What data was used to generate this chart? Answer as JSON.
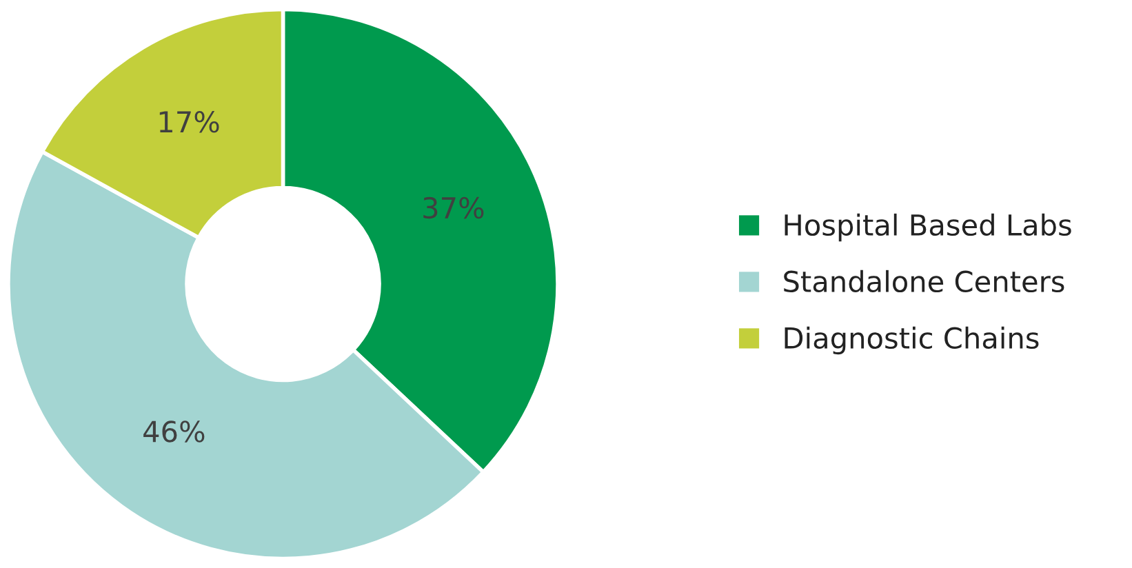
{
  "chart_data": {
    "type": "donut",
    "categories": [
      "Hospital Based Labs",
      "Standalone Centers",
      "Diagnostic Chains"
    ],
    "values": [
      37,
      46,
      17
    ],
    "colors": [
      "#009a4e",
      "#a3d5d2",
      "#c3cf3b"
    ],
    "value_labels": [
      "37%",
      "46%",
      "17%"
    ],
    "legend": "right"
  }
}
